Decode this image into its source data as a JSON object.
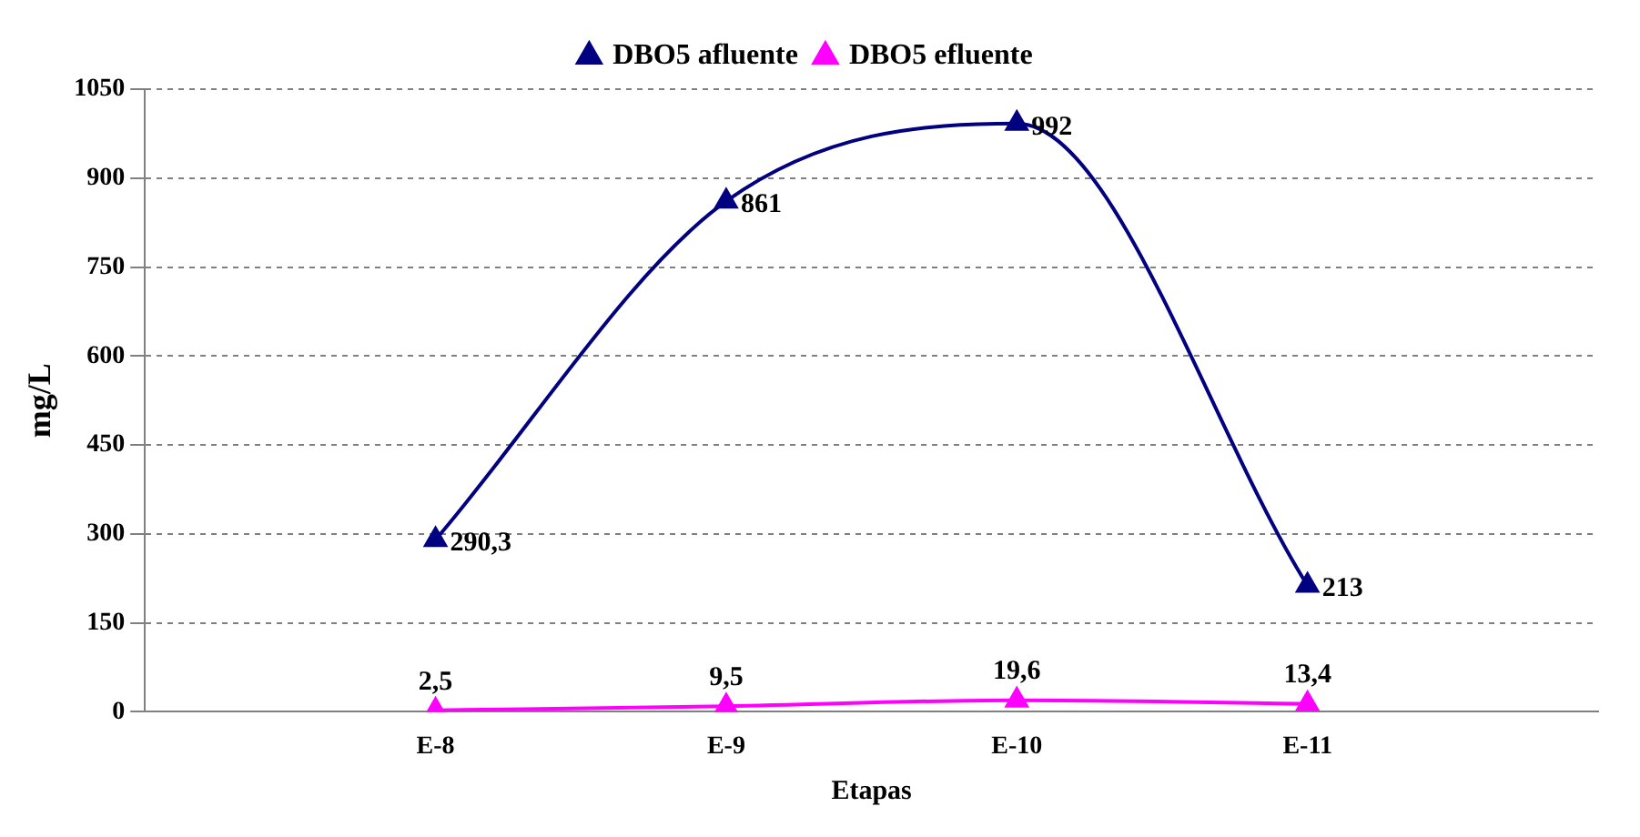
{
  "chart_data": {
    "type": "line",
    "xlabel": "Etapas",
    "ylabel": "mg/L",
    "categories": [
      null,
      "E-8",
      "E-9",
      "E-10",
      "E-11",
      null
    ],
    "series": [
      {
        "name": "DBO5 afluente",
        "color": "#000080",
        "values": [
          null,
          290.3,
          861,
          992,
          213,
          null
        ],
        "value_labels": [
          null,
          "290,3",
          "861",
          "992",
          "213",
          null
        ]
      },
      {
        "name": "DBO5 efluente",
        "color": "#ff00ff",
        "values": [
          null,
          2.5,
          9.5,
          19.6,
          13.4,
          null
        ],
        "value_labels": [
          null,
          "2,5",
          "9,5",
          "19,6",
          "13,4",
          null
        ]
      }
    ],
    "ylim": [
      0,
      1050
    ],
    "yticks": [
      0,
      150,
      300,
      450,
      600,
      750,
      900,
      1050
    ],
    "grid": "y",
    "legend": "top",
    "marker": "triangle",
    "line_style": "solid"
  }
}
